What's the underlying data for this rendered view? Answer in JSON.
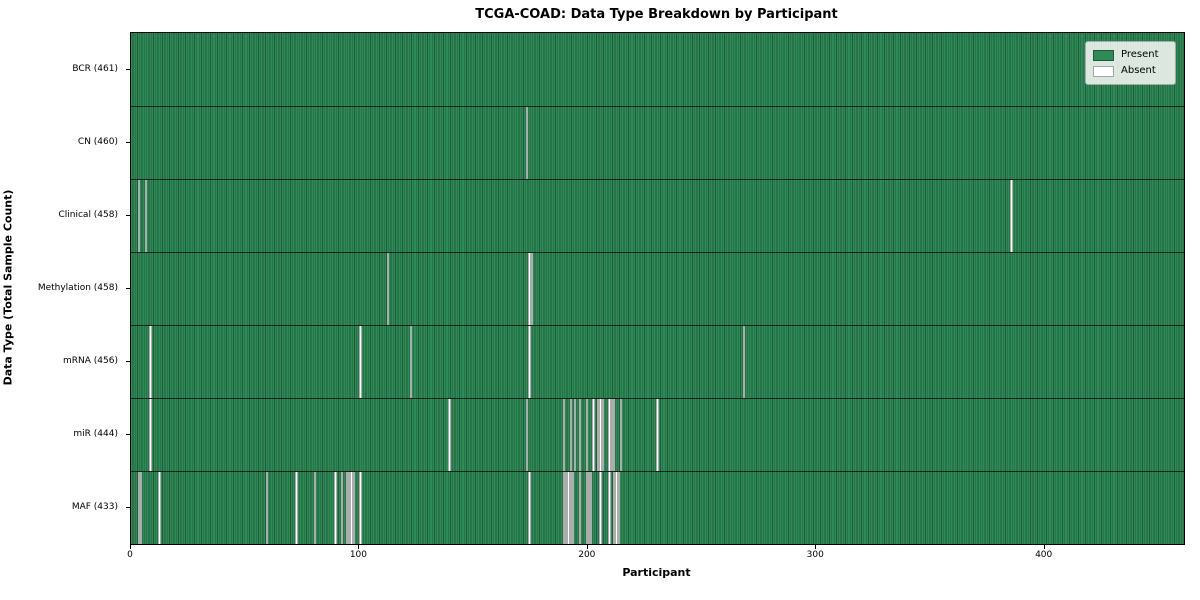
{
  "title": "TCGA-COAD: Data Type Breakdown by Participant",
  "axes": {
    "xlabel": "Participant",
    "ylabel": "Data Type (Total Sample Count)",
    "x_ticks": [
      0,
      100,
      200,
      300,
      400
    ]
  },
  "legend": {
    "entries": [
      {
        "label": "Present",
        "color": "#2e8b57"
      },
      {
        "label": "Absent",
        "color": "#ffffff"
      }
    ]
  },
  "colors": {
    "present": "#2e8b57",
    "present_edge": "#1e5c39",
    "absent": "#ffffff",
    "spine": "#000000"
  },
  "chart_data": {
    "type": "heatmap",
    "title": "TCGA-COAD: Data Type Breakdown by Participant",
    "xlabel": "Participant",
    "ylabel": "Data Type (Total Sample Count)",
    "x_range": [
      0,
      461
    ],
    "n_participants": 461,
    "grid": false,
    "legend_position": "upper right",
    "value_encoding": {
      "present": "green cell",
      "absent": "white cell"
    },
    "rows": [
      {
        "name": "BCR",
        "label": "BCR (461)",
        "total": 461,
        "absent_participants": []
      },
      {
        "name": "CN",
        "label": "CN (460)",
        "total": 460,
        "absent_participants": [
          173
        ]
      },
      {
        "name": "Clinical",
        "label": "Clinical (458)",
        "total": 458,
        "absent_participants": [
          3,
          6,
          385
        ]
      },
      {
        "name": "Methylation",
        "label": "Methylation (458)",
        "total": 458,
        "absent_participants": [
          112,
          174,
          175
        ]
      },
      {
        "name": "mRNA",
        "label": "mRNA (456)",
        "total": 456,
        "absent_participants": [
          8,
          100,
          122,
          174,
          268
        ]
      },
      {
        "name": "miR",
        "label": "miR (444)",
        "total": 444,
        "absent_participants": [
          8,
          139,
          173,
          189,
          192,
          194,
          196,
          199,
          202,
          204,
          205,
          206,
          209,
          210,
          211,
          214,
          230
        ]
      },
      {
        "name": "MAF",
        "label": "MAF (433)",
        "total": 433,
        "absent_participants": [
          3,
          4,
          12,
          59,
          72,
          80,
          89,
          92,
          94,
          95,
          96,
          97,
          100,
          174,
          189,
          190,
          191,
          192,
          193,
          196,
          199,
          200,
          201,
          205,
          209,
          211,
          212,
          213
        ]
      }
    ]
  }
}
